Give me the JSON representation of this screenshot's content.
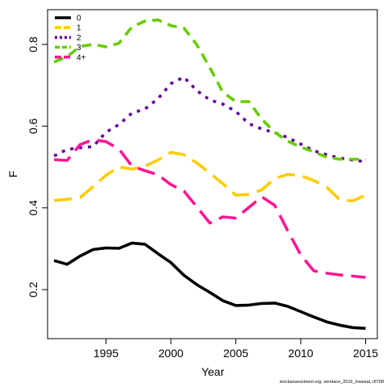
{
  "chart_data": {
    "type": "line",
    "title": "",
    "xlabel": "Year",
    "ylabel": "F",
    "xlim": [
      1990.5,
      2015.9
    ],
    "ylim": [
      0.08,
      0.885
    ],
    "xticks": [
      1995,
      2000,
      2005,
      2010,
      2015
    ],
    "yticks": [
      0.2,
      0.4,
      0.6,
      0.8
    ],
    "legend_position": "top-left",
    "x": [
      1991,
      1992,
      1993,
      1994,
      1995,
      1996,
      1997,
      1998,
      1999,
      2000,
      2001,
      2002,
      2003,
      2004,
      2005,
      2006,
      2007,
      2008,
      2009,
      2010,
      2011,
      2012,
      2013,
      2014,
      2015
    ],
    "series": [
      {
        "name": "0",
        "color": "#000000",
        "dash": "solid",
        "values": [
          0.271,
          0.262,
          0.282,
          0.298,
          0.302,
          0.301,
          0.314,
          0.311,
          0.288,
          0.266,
          0.235,
          0.212,
          0.193,
          0.173,
          0.161,
          0.162,
          0.166,
          0.167,
          0.159,
          0.146,
          0.133,
          0.121,
          0.113,
          0.107,
          0.105
        ]
      },
      {
        "name": "1",
        "color": "#FFCC00",
        "dash": "longdash",
        "values": [
          0.418,
          0.421,
          0.425,
          0.452,
          0.48,
          0.5,
          0.495,
          0.502,
          0.517,
          0.536,
          0.53,
          0.51,
          0.485,
          0.459,
          0.431,
          0.433,
          0.444,
          0.472,
          0.482,
          0.479,
          0.467,
          0.451,
          0.42,
          0.417,
          0.431
        ]
      },
      {
        "name": "2",
        "color": "#660099",
        "dash": "dotted",
        "values": [
          0.527,
          0.543,
          0.547,
          0.55,
          0.585,
          0.604,
          0.632,
          0.642,
          0.667,
          0.704,
          0.72,
          0.687,
          0.664,
          0.654,
          0.636,
          0.606,
          0.593,
          0.584,
          0.572,
          0.556,
          0.54,
          0.53,
          0.522,
          0.517,
          0.513
        ]
      },
      {
        "name": "3",
        "color": "#66CC00",
        "dash": "dashed",
        "values": [
          0.757,
          0.77,
          0.795,
          0.8,
          0.794,
          0.803,
          0.843,
          0.857,
          0.86,
          0.846,
          0.84,
          0.799,
          0.743,
          0.683,
          0.66,
          0.66,
          0.617,
          0.585,
          0.563,
          0.549,
          0.537,
          0.524,
          0.519,
          0.519,
          0.519
        ]
      },
      {
        "name": "4+",
        "color": "#FF1493",
        "dash": "longdash",
        "values": [
          0.518,
          0.516,
          0.555,
          0.567,
          0.562,
          0.544,
          0.502,
          0.491,
          0.481,
          0.457,
          0.441,
          0.402,
          0.363,
          0.378,
          0.375,
          0.401,
          0.427,
          0.406,
          0.344,
          0.285,
          0.246,
          0.24,
          0.236,
          0.233,
          0.23
        ]
      }
    ]
  },
  "footnote": "stockassessment.org, vendace_2016_lowseal, r8708"
}
